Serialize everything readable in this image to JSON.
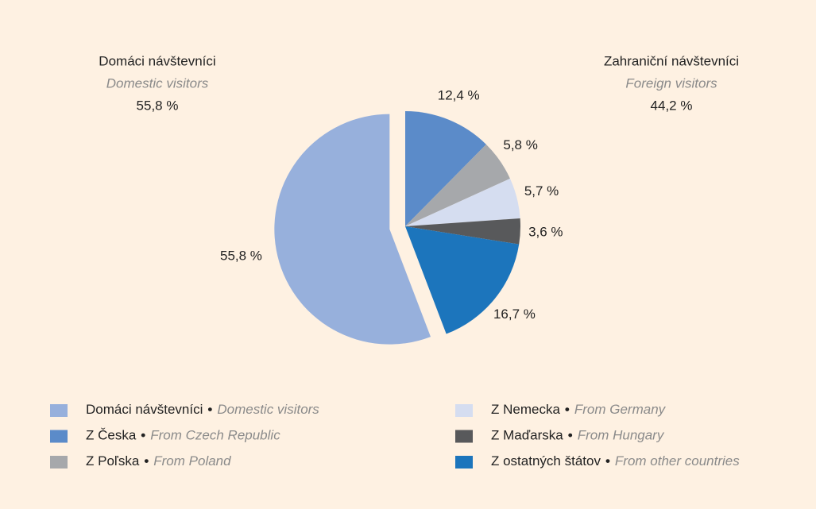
{
  "chart_data": {
    "type": "pie",
    "labels": [
      "Domáci návštevníci",
      "Z Česka",
      "Z Poľska",
      "Z Nemecka",
      "Z Maďarska",
      "Z ostatných štátov"
    ],
    "labels_en": [
      "Domestic visitors",
      "From Czech Republic",
      "From Poland",
      "From Germany",
      "From Hungary",
      "From other countries"
    ],
    "separator": "•",
    "values": [
      55.8,
      12.4,
      5.8,
      5.7,
      3.6,
      16.7
    ],
    "value_labels": [
      "55,8 %",
      "12,4 %",
      "5,8 %",
      "5,7 %",
      "3,6 %",
      "16,7 %"
    ],
    "colors": [
      "#97b0dc",
      "#5b8bc9",
      "#a6a8ab",
      "#d5ddf0",
      "#58595b",
      "#1c75bc"
    ],
    "groups": [
      {
        "name": "Domáci návštevníci",
        "name_en": "Domestic visitors",
        "value": 55.8,
        "value_label": "55,8 %"
      },
      {
        "name": "Zahraniční návštevníci",
        "name_en": "Foreign visitors",
        "value": 44.2,
        "value_label": "44,2 %"
      }
    ]
  }
}
